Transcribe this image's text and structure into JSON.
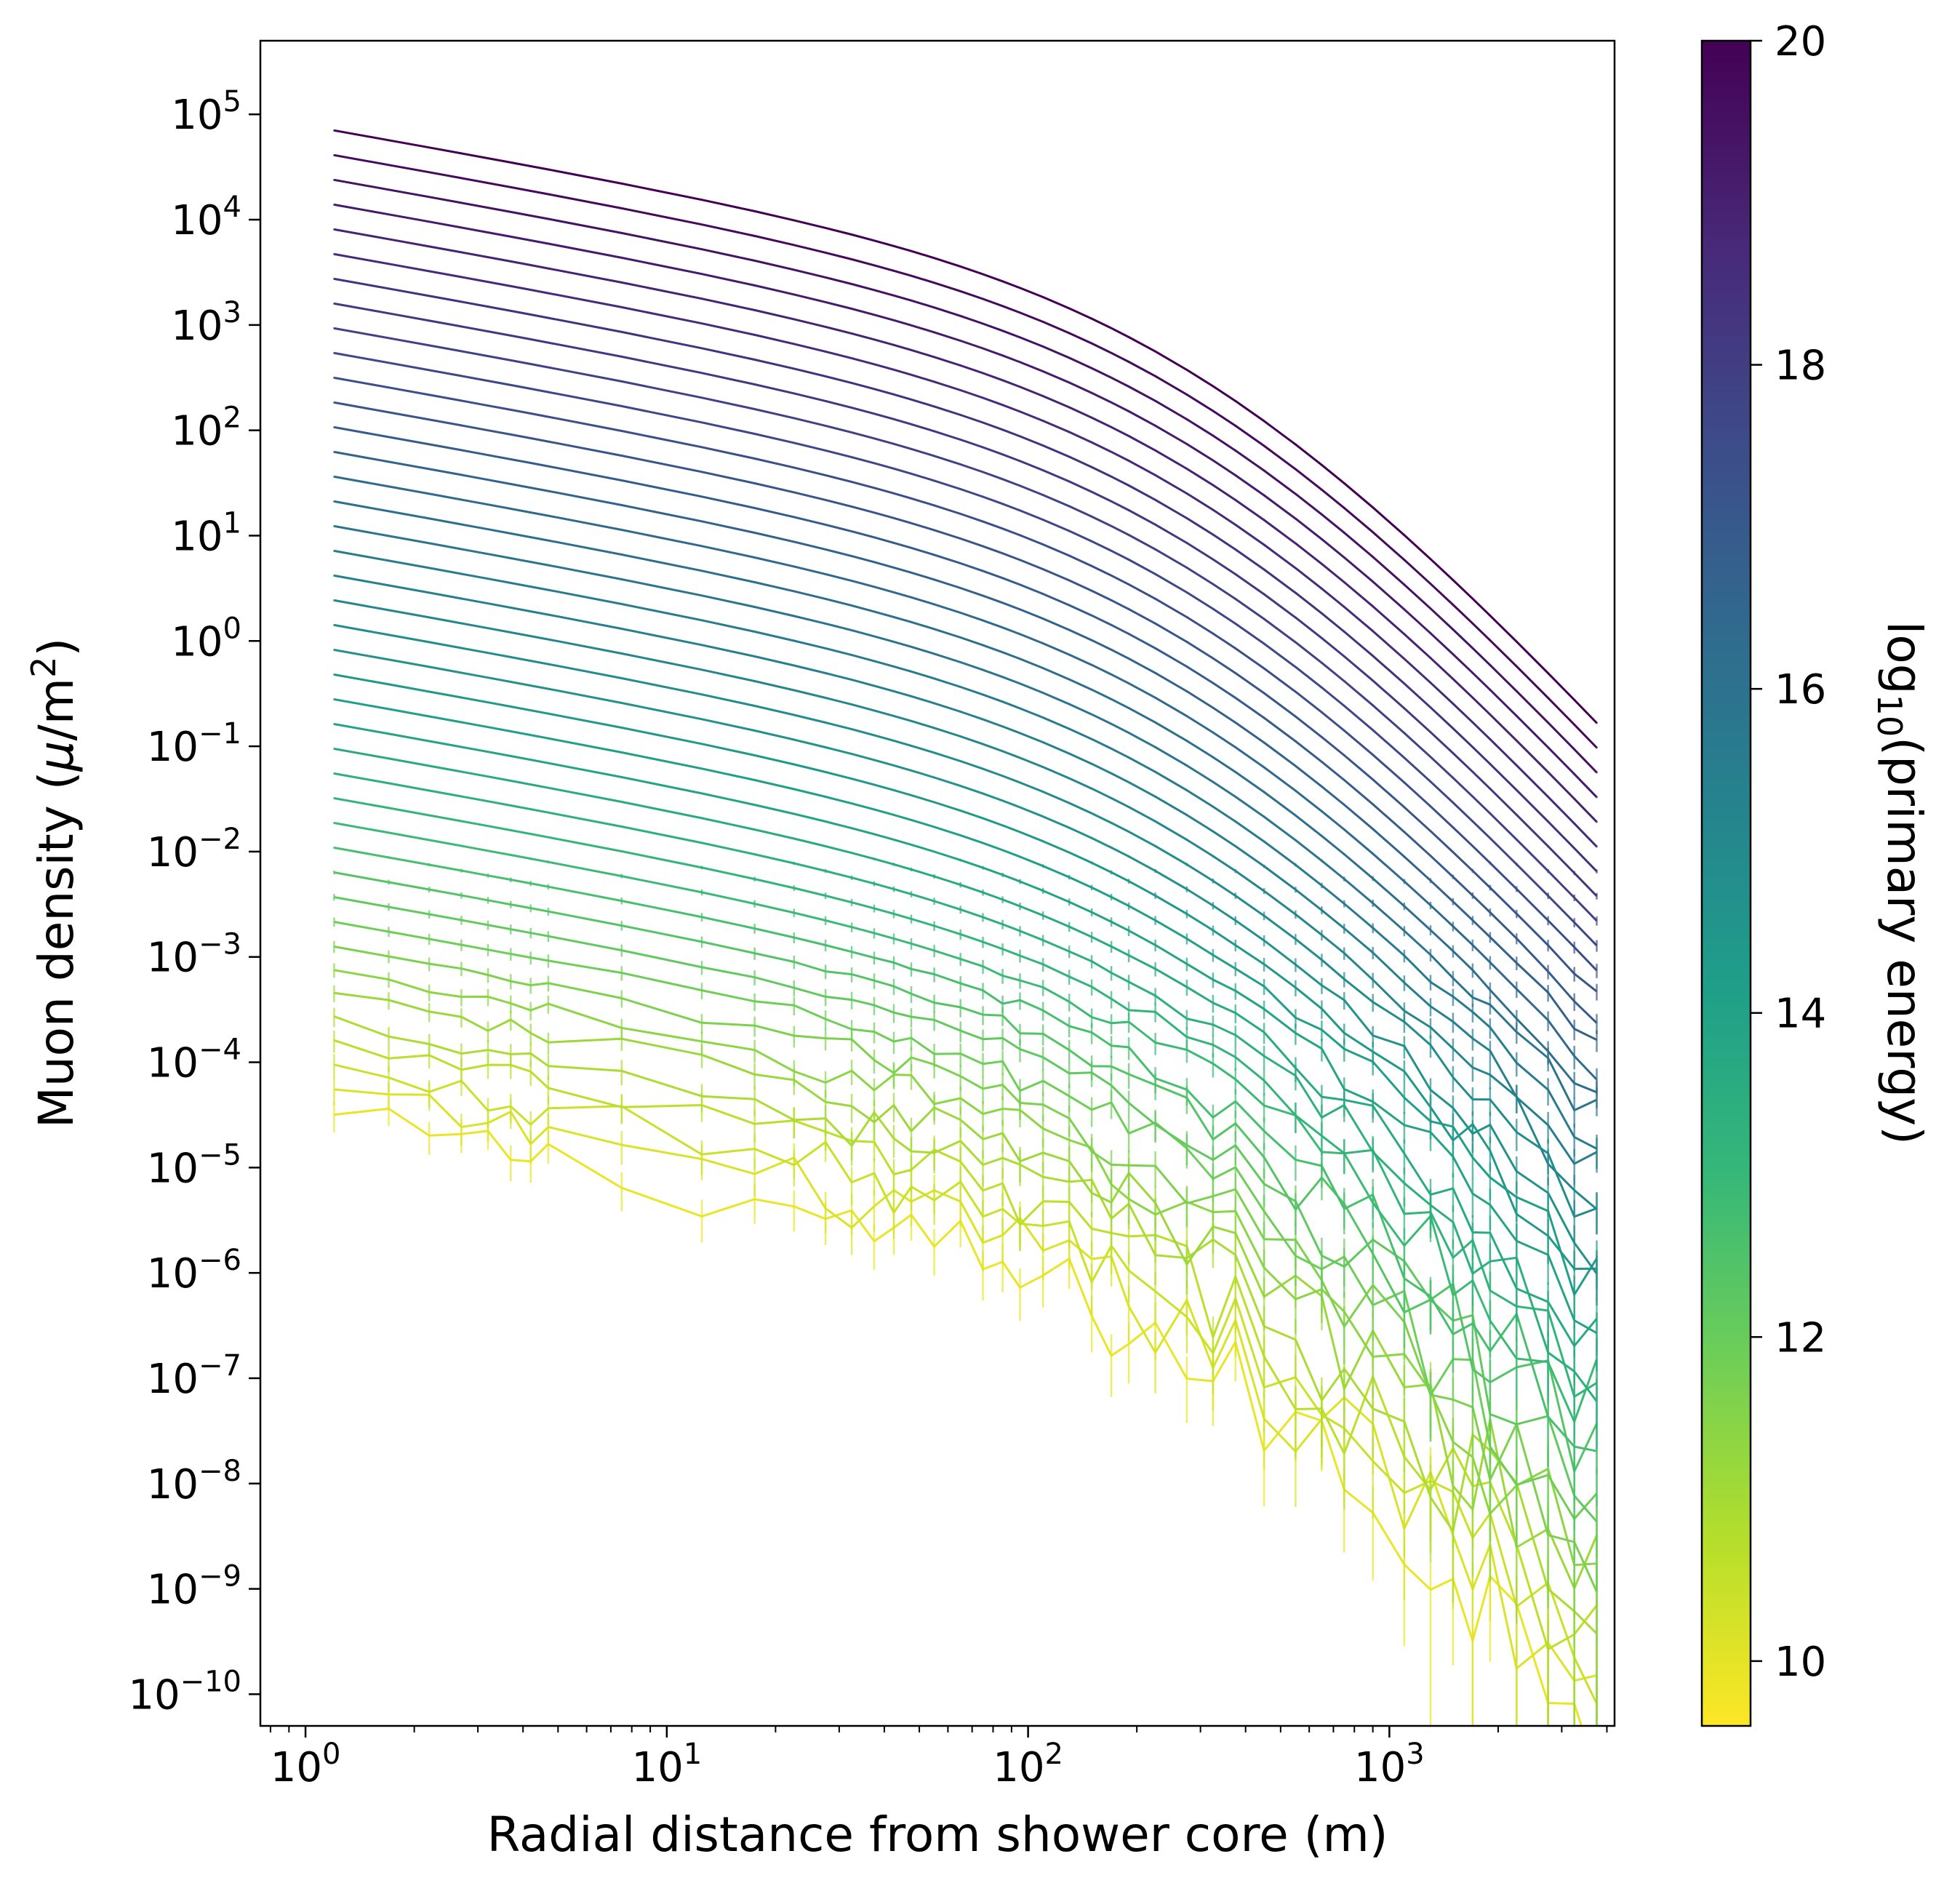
{
  "chart_data": {
    "type": "line",
    "title": "",
    "xlabel": "Radial distance from shower core (m)",
    "ylabel_parts": {
      "pre": "Muon density (",
      "mu": "μ",
      "mid": "/m",
      "sup": "2",
      "post": ")"
    },
    "xscale": "log",
    "yscale": "log",
    "xlim": [
      0.75,
      4200
    ],
    "ylim": [
      5e-11,
      500000.0
    ],
    "x_ticks": [
      {
        "base": "10",
        "exp": "0",
        "value": 1
      },
      {
        "base": "10",
        "exp": "1",
        "value": 10
      },
      {
        "base": "10",
        "exp": "2",
        "value": 100
      },
      {
        "base": "10",
        "exp": "3",
        "value": 1000
      }
    ],
    "y_ticks": [
      {
        "base": "10",
        "exp": "5",
        "value": 5
      },
      {
        "base": "10",
        "exp": "4",
        "value": 4
      },
      {
        "base": "10",
        "exp": "3",
        "value": 3
      },
      {
        "base": "10",
        "exp": "2",
        "value": 2
      },
      {
        "base": "10",
        "exp": "1",
        "value": 1
      },
      {
        "base": "10",
        "exp": "0",
        "value": 0
      },
      {
        "base": "10",
        "exp": "−1",
        "value": -1
      },
      {
        "base": "10",
        "exp": "−2",
        "value": -2
      },
      {
        "base": "10",
        "exp": "−3",
        "value": -3
      },
      {
        "base": "10",
        "exp": "−4",
        "value": -4
      },
      {
        "base": "10",
        "exp": "−5",
        "value": -5
      },
      {
        "base": "10",
        "exp": "−6",
        "value": -6
      },
      {
        "base": "10",
        "exp": "−7",
        "value": -7
      },
      {
        "base": "10",
        "exp": "−8",
        "value": -8
      },
      {
        "base": "10",
        "exp": "−9",
        "value": -9
      },
      {
        "base": "10",
        "exp": "−10",
        "value": -10
      }
    ],
    "colorbar": {
      "label_parts": {
        "pre": "log",
        "sub": "10",
        "post": "(primary energy)"
      },
      "range": [
        9.6,
        20.0
      ],
      "colormap": "viridis_r",
      "ticks": [
        10,
        12,
        14,
        16,
        18,
        20
      ],
      "tick_labels": [
        "10",
        "12",
        "14",
        "16",
        "18",
        "20"
      ]
    },
    "series_energy_range": [
      9.9,
      20.0
    ],
    "series_count": 41,
    "x_values": [
      1.2,
      1.7,
      2.2,
      2.7,
      3.2,
      3.7,
      4.2,
      4.7,
      7.5,
      12.5,
      17.5,
      22.5,
      27.5,
      32.5,
      37.5,
      42.5,
      47.5,
      55,
      65,
      75,
      85,
      95,
      110,
      130,
      150,
      170,
      190,
      225,
      275,
      325,
      375,
      450,
      550,
      650,
      750,
      900,
      1100,
      1300,
      1500,
      1700,
      1900,
      2250,
      2750,
      3250,
      3750
    ],
    "ldf_model": {
      "norm_log10_density_at_1m_E20": 4.9,
      "energy_exponent": 0.93,
      "r0_m": 320,
      "inner_slope": 0.6,
      "outer_slope": 3.2
    },
    "colors": {
      "frame": "#000000",
      "background": "#ffffff",
      "viridis_stops": [
        "#440154",
        "#482878",
        "#3e4989",
        "#31688e",
        "#26828e",
        "#1f9e89",
        "#35b779",
        "#6ece58",
        "#b5de2b",
        "#fde725"
      ]
    }
  }
}
